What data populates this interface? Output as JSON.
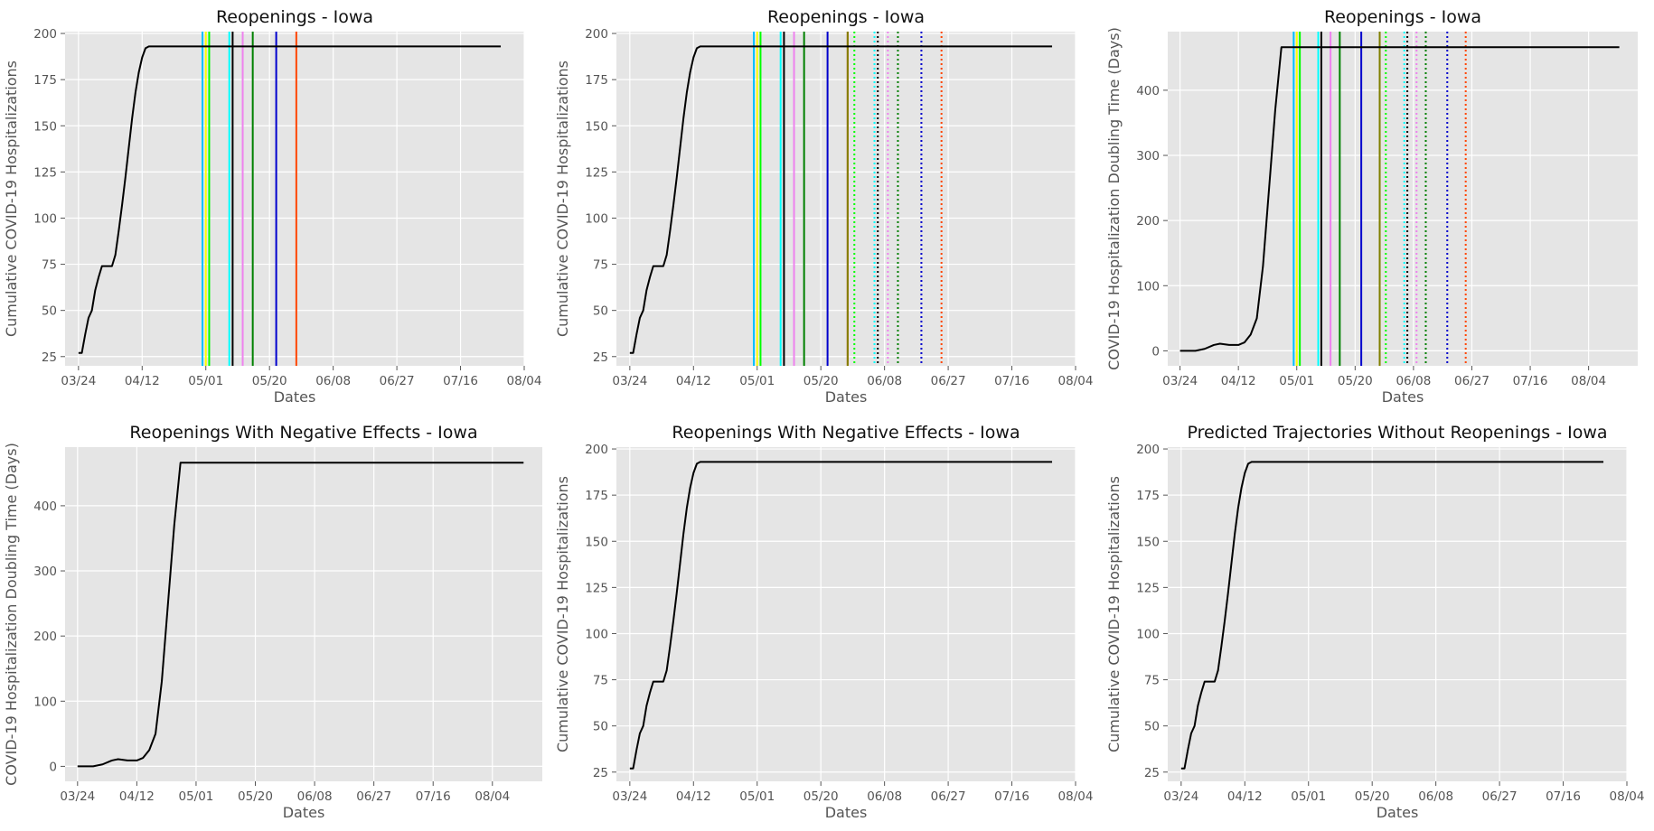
{
  "chart_data": [
    {
      "type": "line",
      "title": "Reopenings - Iowa",
      "xlabel": "Dates",
      "ylabel": "Cumulative COVID-19 Hospitalizations",
      "grid": true,
      "xticks": [
        "03/24",
        "04/12",
        "05/01",
        "05/20",
        "06/08",
        "06/27",
        "07/16",
        "08/04"
      ],
      "xlim": [
        "2020-03-20",
        "2020-08-04"
      ],
      "yticks": [
        25,
        50,
        75,
        100,
        125,
        150,
        175,
        200
      ],
      "ylim": [
        20,
        201
      ],
      "series": [
        {
          "color": "#000000",
          "points": [
            [
              "2020-03-24",
              27
            ],
            [
              "2020-03-25",
              27
            ],
            [
              "2020-03-26",
              37
            ],
            [
              "2020-03-27",
              46
            ],
            [
              "2020-03-28",
              50
            ],
            [
              "2020-03-29",
              61
            ],
            [
              "2020-03-30",
              68
            ],
            [
              "2020-03-31",
              74
            ],
            [
              "2020-04-01",
              74
            ],
            [
              "2020-04-02",
              74
            ],
            [
              "2020-04-03",
              74
            ],
            [
              "2020-04-04",
              80
            ],
            [
              "2020-04-05",
              93
            ],
            [
              "2020-04-06",
              107
            ],
            [
              "2020-04-07",
              122
            ],
            [
              "2020-04-08",
              138
            ],
            [
              "2020-04-09",
              154
            ],
            [
              "2020-04-10",
              168
            ],
            [
              "2020-04-11",
              179
            ],
            [
              "2020-04-12",
              187
            ],
            [
              "2020-04-13",
              192
            ],
            [
              "2020-04-14",
              193
            ],
            [
              "2020-04-15",
              193
            ],
            [
              "2020-07-28",
              193
            ]
          ]
        }
      ],
      "vlines": [
        {
          "x": "2020-04-30",
          "color": "#00bfff",
          "style": "solid"
        },
        {
          "x": "2020-05-01",
          "color": "#ffff00",
          "style": "solid"
        },
        {
          "x": "2020-05-02",
          "color": "#00ff00",
          "style": "solid"
        },
        {
          "x": "2020-05-08",
          "color": "#00ffff",
          "style": "solid"
        },
        {
          "x": "2020-05-09",
          "color": "#000000",
          "style": "solid"
        },
        {
          "x": "2020-05-12",
          "color": "#ee82ee",
          "style": "solid"
        },
        {
          "x": "2020-05-15",
          "color": "#008000",
          "style": "solid"
        },
        {
          "x": "2020-05-22",
          "color": "#0000cd",
          "style": "solid"
        },
        {
          "x": "2020-05-28",
          "color": "#ff4500",
          "style": "solid"
        }
      ]
    },
    {
      "type": "line",
      "title": "Reopenings - Iowa",
      "xlabel": "Dates",
      "ylabel": "Cumulative COVID-19 Hospitalizations",
      "grid": true,
      "xticks": [
        "03/24",
        "04/12",
        "05/01",
        "05/20",
        "06/08",
        "06/27",
        "07/16",
        "08/04"
      ],
      "xlim": [
        "2020-03-20",
        "2020-08-04"
      ],
      "yticks": [
        25,
        50,
        75,
        100,
        125,
        150,
        175,
        200
      ],
      "ylim": [
        20,
        201
      ],
      "series": [
        {
          "color": "#000000",
          "points": [
            [
              "2020-03-24",
              27
            ],
            [
              "2020-03-25",
              27
            ],
            [
              "2020-03-26",
              37
            ],
            [
              "2020-03-27",
              46
            ],
            [
              "2020-03-28",
              50
            ],
            [
              "2020-03-29",
              61
            ],
            [
              "2020-03-30",
              68
            ],
            [
              "2020-03-31",
              74
            ],
            [
              "2020-04-01",
              74
            ],
            [
              "2020-04-02",
              74
            ],
            [
              "2020-04-03",
              74
            ],
            [
              "2020-04-04",
              80
            ],
            [
              "2020-04-05",
              93
            ],
            [
              "2020-04-06",
              107
            ],
            [
              "2020-04-07",
              122
            ],
            [
              "2020-04-08",
              138
            ],
            [
              "2020-04-09",
              154
            ],
            [
              "2020-04-10",
              168
            ],
            [
              "2020-04-11",
              179
            ],
            [
              "2020-04-12",
              187
            ],
            [
              "2020-04-13",
              192
            ],
            [
              "2020-04-14",
              193
            ],
            [
              "2020-04-15",
              193
            ],
            [
              "2020-07-28",
              193
            ]
          ]
        }
      ],
      "vlines": [
        {
          "x": "2020-04-30",
          "color": "#00bfff",
          "style": "solid"
        },
        {
          "x": "2020-05-01",
          "color": "#ffff00",
          "style": "solid"
        },
        {
          "x": "2020-05-02",
          "color": "#00ff00",
          "style": "solid"
        },
        {
          "x": "2020-05-08",
          "color": "#00ffff",
          "style": "solid"
        },
        {
          "x": "2020-05-09",
          "color": "#000000",
          "style": "solid"
        },
        {
          "x": "2020-05-12",
          "color": "#ee82ee",
          "style": "solid"
        },
        {
          "x": "2020-05-15",
          "color": "#008000",
          "style": "solid"
        },
        {
          "x": "2020-05-22",
          "color": "#0000cd",
          "style": "solid"
        },
        {
          "x": "2020-05-28",
          "color": "#ff4500",
          "style": "solid"
        },
        {
          "x": "2020-05-28",
          "color": "#808000",
          "style": "solid"
        },
        {
          "x": "2020-05-30",
          "color": "#00ff00",
          "style": "dotted"
        },
        {
          "x": "2020-06-05",
          "color": "#00ffff",
          "style": "dotted"
        },
        {
          "x": "2020-06-06",
          "color": "#000000",
          "style": "dotted"
        },
        {
          "x": "2020-06-09",
          "color": "#ee82ee",
          "style": "dotted"
        },
        {
          "x": "2020-06-12",
          "color": "#008000",
          "style": "dotted"
        },
        {
          "x": "2020-06-19",
          "color": "#0000cd",
          "style": "dotted"
        },
        {
          "x": "2020-06-25",
          "color": "#ff4500",
          "style": "dotted"
        }
      ]
    },
    {
      "type": "line",
      "title": "Reopenings - Iowa",
      "xlabel": "Dates",
      "ylabel": "COVID-19 Hospitalization Doubling Time (Days)",
      "grid": true,
      "xticks": [
        "03/24",
        "04/12",
        "05/01",
        "05/20",
        "06/08",
        "06/27",
        "07/16",
        "08/04"
      ],
      "xlim": [
        "2020-03-20",
        "2020-08-20"
      ],
      "yticks": [
        0,
        100,
        200,
        300,
        400
      ],
      "ylim": [
        -23,
        490
      ],
      "series": [
        {
          "color": "#000000",
          "points": [
            [
              "2020-03-24",
              0
            ],
            [
              "2020-03-29",
              0
            ],
            [
              "2020-04-01",
              3
            ],
            [
              "2020-04-04",
              9
            ],
            [
              "2020-04-06",
              11
            ],
            [
              "2020-04-09",
              9
            ],
            [
              "2020-04-12",
              9
            ],
            [
              "2020-04-14",
              13
            ],
            [
              "2020-04-16",
              25
            ],
            [
              "2020-04-18",
              50
            ],
            [
              "2020-04-20",
              130
            ],
            [
              "2020-04-22",
              250
            ],
            [
              "2020-04-24",
              370
            ],
            [
              "2020-04-26",
              466
            ],
            [
              "2020-08-14",
              466
            ]
          ]
        }
      ],
      "vlines": [
        {
          "x": "2020-04-30",
          "color": "#00bfff",
          "style": "solid"
        },
        {
          "x": "2020-05-01",
          "color": "#ffff00",
          "style": "solid"
        },
        {
          "x": "2020-05-02",
          "color": "#00ff00",
          "style": "solid"
        },
        {
          "x": "2020-05-08",
          "color": "#00ffff",
          "style": "solid"
        },
        {
          "x": "2020-05-09",
          "color": "#000000",
          "style": "solid"
        },
        {
          "x": "2020-05-12",
          "color": "#ee82ee",
          "style": "solid"
        },
        {
          "x": "2020-05-15",
          "color": "#008000",
          "style": "solid"
        },
        {
          "x": "2020-05-22",
          "color": "#0000cd",
          "style": "solid"
        },
        {
          "x": "2020-05-28",
          "color": "#ff4500",
          "style": "solid"
        },
        {
          "x": "2020-05-28",
          "color": "#808000",
          "style": "solid"
        },
        {
          "x": "2020-05-30",
          "color": "#00ff00",
          "style": "dotted"
        },
        {
          "x": "2020-06-05",
          "color": "#00ffff",
          "style": "dotted"
        },
        {
          "x": "2020-06-06",
          "color": "#000000",
          "style": "dotted"
        },
        {
          "x": "2020-06-09",
          "color": "#ee82ee",
          "style": "dotted"
        },
        {
          "x": "2020-06-12",
          "color": "#008000",
          "style": "dotted"
        },
        {
          "x": "2020-06-19",
          "color": "#0000cd",
          "style": "dotted"
        },
        {
          "x": "2020-06-25",
          "color": "#ff4500",
          "style": "dotted"
        }
      ]
    },
    {
      "type": "line",
      "title": "Reopenings With Negative Effects - Iowa",
      "xlabel": "Dates",
      "ylabel": "COVID-19 Hospitalization Doubling Time (Days)",
      "grid": true,
      "xticks": [
        "03/24",
        "04/12",
        "05/01",
        "05/20",
        "06/08",
        "06/27",
        "07/16",
        "08/04"
      ],
      "xlim": [
        "2020-03-20",
        "2020-08-20"
      ],
      "yticks": [
        0,
        100,
        200,
        300,
        400
      ],
      "ylim": [
        -23,
        490
      ],
      "series": [
        {
          "color": "#000000",
          "points": [
            [
              "2020-03-24",
              0
            ],
            [
              "2020-03-29",
              0
            ],
            [
              "2020-04-01",
              3
            ],
            [
              "2020-04-04",
              9
            ],
            [
              "2020-04-06",
              11
            ],
            [
              "2020-04-09",
              9
            ],
            [
              "2020-04-12",
              9
            ],
            [
              "2020-04-14",
              13
            ],
            [
              "2020-04-16",
              25
            ],
            [
              "2020-04-18",
              50
            ],
            [
              "2020-04-20",
              130
            ],
            [
              "2020-04-22",
              250
            ],
            [
              "2020-04-24",
              370
            ],
            [
              "2020-04-26",
              466
            ],
            [
              "2020-08-14",
              466
            ]
          ]
        }
      ],
      "vlines": []
    },
    {
      "type": "line",
      "title": "Reopenings With Negative Effects - Iowa",
      "xlabel": "Dates",
      "ylabel": "Cumulative COVID-19 Hospitalizations",
      "grid": true,
      "xticks": [
        "03/24",
        "04/12",
        "05/01",
        "05/20",
        "06/08",
        "06/27",
        "07/16",
        "08/04"
      ],
      "xlim": [
        "2020-03-20",
        "2020-08-04"
      ],
      "yticks": [
        25,
        50,
        75,
        100,
        125,
        150,
        175,
        200
      ],
      "ylim": [
        20,
        201
      ],
      "series": [
        {
          "color": "#000000",
          "points": [
            [
              "2020-03-24",
              27
            ],
            [
              "2020-03-25",
              27
            ],
            [
              "2020-03-26",
              37
            ],
            [
              "2020-03-27",
              46
            ],
            [
              "2020-03-28",
              50
            ],
            [
              "2020-03-29",
              61
            ],
            [
              "2020-03-30",
              68
            ],
            [
              "2020-03-31",
              74
            ],
            [
              "2020-04-01",
              74
            ],
            [
              "2020-04-02",
              74
            ],
            [
              "2020-04-03",
              74
            ],
            [
              "2020-04-04",
              80
            ],
            [
              "2020-04-05",
              93
            ],
            [
              "2020-04-06",
              107
            ],
            [
              "2020-04-07",
              122
            ],
            [
              "2020-04-08",
              138
            ],
            [
              "2020-04-09",
              154
            ],
            [
              "2020-04-10",
              168
            ],
            [
              "2020-04-11",
              179
            ],
            [
              "2020-04-12",
              187
            ],
            [
              "2020-04-13",
              192
            ],
            [
              "2020-04-14",
              193
            ],
            [
              "2020-04-15",
              193
            ],
            [
              "2020-07-28",
              193
            ]
          ]
        }
      ],
      "vlines": []
    },
    {
      "type": "line",
      "title": "Predicted Trajectories Without Reopenings - Iowa",
      "xlabel": "Dates",
      "ylabel": "Cumulative COVID-19 Hospitalizations",
      "grid": true,
      "xticks": [
        "03/24",
        "04/12",
        "05/01",
        "05/20",
        "06/08",
        "06/27",
        "07/16",
        "08/04"
      ],
      "xlim": [
        "2020-03-20",
        "2020-08-04"
      ],
      "yticks": [
        25,
        50,
        75,
        100,
        125,
        150,
        175,
        200
      ],
      "ylim": [
        20,
        201
      ],
      "series": [
        {
          "color": "#000000",
          "points": [
            [
              "2020-03-24",
              27
            ],
            [
              "2020-03-25",
              27
            ],
            [
              "2020-03-26",
              37
            ],
            [
              "2020-03-27",
              46
            ],
            [
              "2020-03-28",
              50
            ],
            [
              "2020-03-29",
              61
            ],
            [
              "2020-03-30",
              68
            ],
            [
              "2020-03-31",
              74
            ],
            [
              "2020-04-01",
              74
            ],
            [
              "2020-04-02",
              74
            ],
            [
              "2020-04-03",
              74
            ],
            [
              "2020-04-04",
              80
            ],
            [
              "2020-04-05",
              93
            ],
            [
              "2020-04-06",
              107
            ],
            [
              "2020-04-07",
              122
            ],
            [
              "2020-04-08",
              138
            ],
            [
              "2020-04-09",
              154
            ],
            [
              "2020-04-10",
              168
            ],
            [
              "2020-04-11",
              179
            ],
            [
              "2020-04-12",
              187
            ],
            [
              "2020-04-13",
              192
            ],
            [
              "2020-04-14",
              193
            ],
            [
              "2020-04-15",
              193
            ],
            [
              "2020-07-28",
              193
            ]
          ]
        }
      ],
      "vlines": []
    }
  ]
}
